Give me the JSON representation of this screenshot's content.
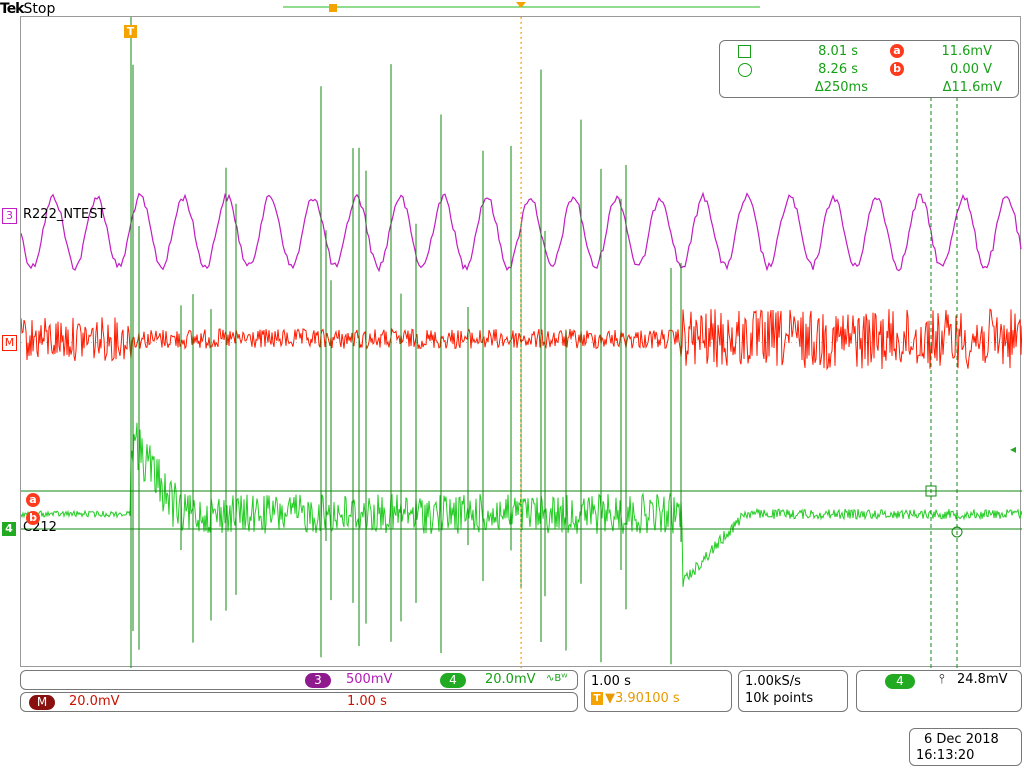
{
  "header": {
    "brand": "Tek",
    "status": "Stop"
  },
  "trigger_marker": "T",
  "channels": {
    "ch3": {
      "number": "3",
      "label": "R222_NTEST",
      "scale": "500mV",
      "color": "#c21cc4"
    },
    "math": {
      "label": "M",
      "scale": "20.0mV",
      "timebase": "1.00 s",
      "color": "#ff1a00"
    },
    "ch4": {
      "number": "4",
      "label": "C212",
      "scale": "20.0mV",
      "coupling_symbol": "∿Bᵂ",
      "color": "#1fcc1f"
    }
  },
  "cursor_markers": {
    "a": "a",
    "b": "b"
  },
  "cursor_readout": {
    "t1": "8.01 s",
    "t2": "8.26 s",
    "dt": "Δ250ms",
    "va": "11.6mV",
    "vb": "0.00 V",
    "dv": "Δ11.6mV"
  },
  "horizontal": {
    "scale": "1.00 s",
    "position": "▼3.90100 s",
    "position_prefix": "T"
  },
  "acquisition": {
    "sample_rate": "1.00kS/s",
    "record_length": "10k points"
  },
  "trigger": {
    "source": "4",
    "slope_symbol": "⫯",
    "level": "24.8mV"
  },
  "datetime": {
    "date": "6 Dec  2018",
    "time": "16:13:20"
  },
  "colors": {
    "ch3": "#c21cc4",
    "math": "#ff1a00",
    "ch4": "#22cc22",
    "ch4_dark": "#118811",
    "trigger_orange": "#f5a300"
  }
}
